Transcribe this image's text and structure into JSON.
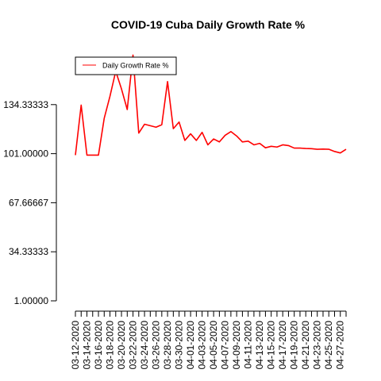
{
  "chart_data": {
    "type": "line",
    "title": "COVID-19 Cuba Daily Growth Rate %",
    "xlabel": "",
    "ylabel": "",
    "x": [
      "03-12-2020",
      "03-13-2020",
      "03-14-2020",
      "03-15-2020",
      "03-16-2020",
      "03-17-2020",
      "03-18-2020",
      "03-19-2020",
      "03-20-2020",
      "03-21-2020",
      "03-22-2020",
      "03-23-2020",
      "03-24-2020",
      "03-25-2020",
      "03-26-2020",
      "03-27-2020",
      "03-28-2020",
      "03-29-2020",
      "03-30-2020",
      "03-31-2020",
      "04-01-2020",
      "04-02-2020",
      "04-03-2020",
      "04-04-2020",
      "04-05-2020",
      "04-06-2020",
      "04-07-2020",
      "04-08-2020",
      "04-09-2020",
      "04-10-2020",
      "04-11-2020",
      "04-12-2020",
      "04-13-2020",
      "04-14-2020",
      "04-15-2020",
      "04-16-2020",
      "04-17-2020",
      "04-18-2020",
      "04-19-2020",
      "04-20-2020",
      "04-21-2020",
      "04-22-2020",
      "04-23-2020",
      "04-24-2020",
      "04-25-2020",
      "04-26-2020",
      "04-27-2020",
      "04-28-2020"
    ],
    "x_tick_labels": [
      "03-12-2020",
      "03-14-2020",
      "03-16-2020",
      "03-18-2020",
      "03-20-2020",
      "03-22-2020",
      "03-24-2020",
      "03-26-2020",
      "03-28-2020",
      "03-30-2020",
      "04-01-2020",
      "04-03-2020",
      "04-05-2020",
      "04-07-2020",
      "04-09-2020",
      "04-11-2020",
      "04-13-2020",
      "04-15-2020",
      "04-17-2020",
      "04-19-2020",
      "04-21-2020",
      "04-23-2020",
      "04-25-2020",
      "04-27-2020"
    ],
    "y_ticks": [
      1.0,
      34.33333,
      67.66667,
      101.0,
      134.33333
    ],
    "y_tick_labels": [
      "1.00000",
      "34.33333",
      "67.66667",
      "101.00000",
      "134.33333"
    ],
    "ylim": [
      1.0,
      167.67
    ],
    "grid": false,
    "legend_position": "top-left",
    "series": [
      {
        "name": "Daily Growth Rate %",
        "color": "#ff0000",
        "values": [
          100.0,
          134.0,
          100.0,
          100.0,
          100.0,
          125.0,
          140.0,
          157.0,
          145.0,
          131.0,
          168.0,
          115.0,
          121.0,
          120.0,
          119.0,
          120.7,
          150.0,
          118.0,
          122.5,
          110.0,
          114.5,
          110.0,
          115.5,
          107.0,
          111.0,
          109.0,
          113.5,
          116.0,
          113.0,
          109.0,
          109.5,
          107.0,
          108.0,
          105.0,
          106.0,
          105.5,
          107.0,
          106.5,
          104.8,
          104.8,
          104.5,
          104.4,
          104.0,
          104.1,
          104.0,
          102.5,
          101.5,
          104.0
        ]
      }
    ]
  }
}
